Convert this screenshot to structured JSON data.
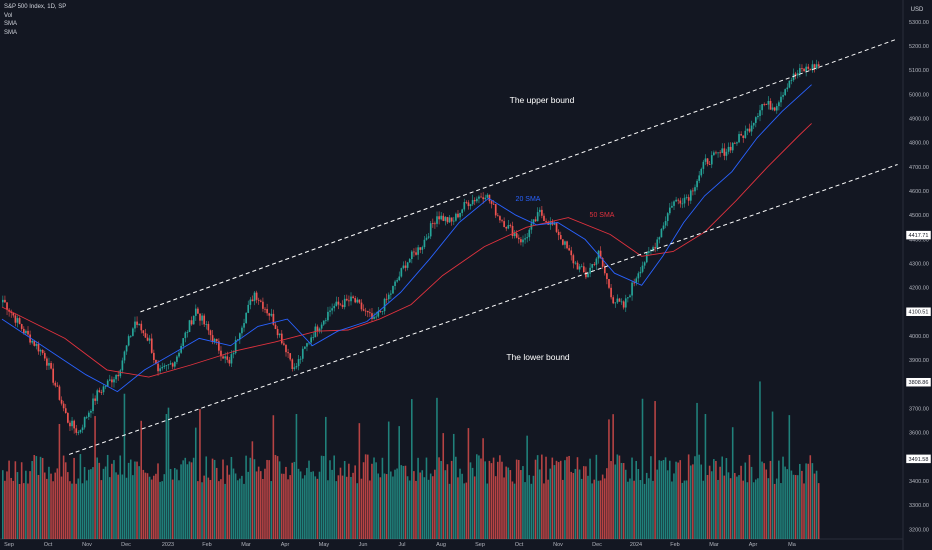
{
  "legend": {
    "title": "S&P 500 Index, 1D, SP",
    "indicators": [
      "Vol",
      "SMA",
      "SMA"
    ]
  },
  "currency": "USD",
  "annotations": {
    "upper": "The upper bound",
    "lower": "The lower bound",
    "sma20": "20 SMA",
    "sma50": "50 SMA"
  },
  "price_tags": [
    "4417.71",
    "4100.51",
    "3808.86",
    "3491.58"
  ],
  "colors": {
    "background": "#131722",
    "up": "#26a69a",
    "down": "#ef5350",
    "sma20": "#2962ff",
    "sma50": "#e0323e",
    "channel": "#ffffff",
    "text": "#b2b5be"
  },
  "chart_data": {
    "type": "candlestick",
    "title": "S&P 500 Index, 1D, SP",
    "y_axis": {
      "ticks": [
        3200,
        3300,
        3400,
        3500,
        3600,
        3700,
        3800,
        3900,
        4000,
        4100,
        4200,
        4300,
        4400,
        4500,
        4600,
        4700,
        4800,
        4900,
        5000,
        5100,
        5200,
        5300
      ],
      "ylim": [
        3160,
        5370
      ]
    },
    "x_axis": {
      "ticks": [
        "Sep",
        "Oct",
        "Nov",
        "Dec",
        "2023",
        "Feb",
        "Mar",
        "Apr",
        "May",
        "Jun",
        "Jul",
        "Aug",
        "Sep",
        "Oct",
        "Nov",
        "Dec",
        "2024",
        "Feb",
        "Mar",
        "Apr",
        "Ma"
      ]
    },
    "price_path": [
      [
        0,
        4150
      ],
      [
        10,
        4020
      ],
      [
        20,
        3920
      ],
      [
        31,
        3650
      ],
      [
        36,
        3600
      ],
      [
        45,
        3760
      ],
      [
        55,
        3850
      ],
      [
        63,
        4060
      ],
      [
        70,
        3980
      ],
      [
        74,
        3840
      ],
      [
        82,
        3900
      ],
      [
        92,
        4110
      ],
      [
        100,
        3990
      ],
      [
        108,
        3880
      ],
      [
        113,
        4030
      ],
      [
        120,
        4180
      ],
      [
        128,
        4080
      ],
      [
        136,
        3930
      ],
      [
        139,
        3860
      ],
      [
        147,
        4000
      ],
      [
        157,
        4120
      ],
      [
        167,
        4150
      ],
      [
        177,
        4060
      ],
      [
        185,
        4180
      ],
      [
        192,
        4300
      ],
      [
        200,
        4380
      ],
      [
        207,
        4500
      ],
      [
        214,
        4470
      ],
      [
        221,
        4550
      ],
      [
        230,
        4590
      ],
      [
        236,
        4500
      ],
      [
        241,
        4450
      ],
      [
        248,
        4390
      ],
      [
        256,
        4510
      ],
      [
        264,
        4440
      ],
      [
        272,
        4310
      ],
      [
        278,
        4250
      ],
      [
        284,
        4340
      ],
      [
        291,
        4150
      ],
      [
        296,
        4120
      ],
      [
        303,
        4270
      ],
      [
        311,
        4380
      ],
      [
        319,
        4550
      ],
      [
        327,
        4580
      ],
      [
        335,
        4720
      ],
      [
        345,
        4770
      ],
      [
        355,
        4850
      ],
      [
        362,
        4960
      ],
      [
        368,
        4950
      ],
      [
        375,
        5060
      ],
      [
        381,
        5100
      ],
      [
        385,
        5110
      ],
      [
        388,
        5120
      ]
    ],
    "sma20": [
      [
        0,
        4070
      ],
      [
        40,
        3840
      ],
      [
        55,
        3770
      ],
      [
        68,
        3860
      ],
      [
        80,
        3920
      ],
      [
        94,
        3990
      ],
      [
        109,
        3960
      ],
      [
        122,
        4040
      ],
      [
        136,
        4070
      ],
      [
        148,
        3960
      ],
      [
        160,
        4020
      ],
      [
        174,
        4060
      ],
      [
        190,
        4180
      ],
      [
        204,
        4320
      ],
      [
        218,
        4470
      ],
      [
        232,
        4570
      ],
      [
        245,
        4500
      ],
      [
        255,
        4460
      ],
      [
        265,
        4470
      ],
      [
        278,
        4400
      ],
      [
        292,
        4260
      ],
      [
        305,
        4210
      ],
      [
        315,
        4330
      ],
      [
        325,
        4470
      ],
      [
        335,
        4580
      ],
      [
        348,
        4680
      ],
      [
        360,
        4820
      ],
      [
        372,
        4930
      ],
      [
        386,
        5040
      ]
    ],
    "sma50": [
      [
        0,
        4120
      ],
      [
        30,
        3990
      ],
      [
        50,
        3860
      ],
      [
        70,
        3830
      ],
      [
        90,
        3880
      ],
      [
        112,
        3940
      ],
      [
        130,
        3975
      ],
      [
        150,
        4020
      ],
      [
        165,
        4025
      ],
      [
        180,
        4070
      ],
      [
        195,
        4130
      ],
      [
        210,
        4250
      ],
      [
        230,
        4370
      ],
      [
        250,
        4450
      ],
      [
        270,
        4490
      ],
      [
        290,
        4420
      ],
      [
        305,
        4330
      ],
      [
        320,
        4350
      ],
      [
        335,
        4430
      ],
      [
        350,
        4560
      ],
      [
        365,
        4700
      ],
      [
        380,
        4830
      ],
      [
        386,
        4880
      ]
    ],
    "channel": {
      "upper": [
        [
          66,
          4100
        ],
        [
          427,
          5230
        ]
      ],
      "lower": [
        [
          32,
          3510
        ],
        [
          427,
          4710
        ]
      ]
    },
    "series": [
      {
        "name": "20 SMA"
      },
      {
        "name": "50 SMA"
      }
    ]
  }
}
